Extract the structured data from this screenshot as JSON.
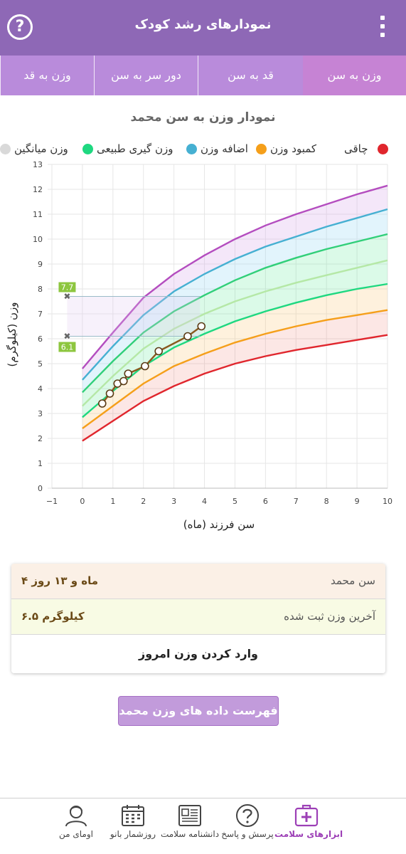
{
  "header": {
    "title": "نمودارهای رشد کودک",
    "help_icon": "question-circle-icon",
    "menu_icon": "more-vertical-icon"
  },
  "tabs": [
    {
      "label": "وزن به سن",
      "active": true
    },
    {
      "label": "قد به سن",
      "active": false
    },
    {
      "label": "دور سر به سن",
      "active": false
    },
    {
      "label": "وزن به قد",
      "active": false
    }
  ],
  "chart_title": "نمودار وزن به سن محمد",
  "legend": [
    {
      "label": "چاقی",
      "color": "#e0262d"
    },
    {
      "label": "کمبود وزن",
      "color": "#f59f1a"
    },
    {
      "label": "اضافه وزن",
      "color": "#46b0d2"
    },
    {
      "label": "وزن گیری طبیعی",
      "color": "#1ed880"
    },
    {
      "label": "وزن میانگین",
      "color": "#d9d9d9"
    }
  ],
  "chart_data": {
    "type": "line",
    "xlabel": "سن فرزند (ماه)",
    "ylabel": "وزن (کیلوگرم)",
    "xlim": [
      -1,
      10
    ],
    "ylim": [
      0,
      13
    ],
    "x_ticks": [
      "−1",
      "0",
      "1",
      "2",
      "3",
      "4",
      "5",
      "6",
      "7",
      "8",
      "9",
      "10"
    ],
    "y_ticks": [
      "0",
      "1",
      "2",
      "3",
      "4",
      "5",
      "6",
      "7",
      "8",
      "9",
      "10",
      "11",
      "12",
      "13"
    ],
    "x": [
      0,
      1,
      2,
      3,
      4,
      5,
      6,
      7,
      8,
      9,
      10
    ],
    "series": [
      {
        "color": "#e0262d",
        "values": [
          1.9,
          2.7,
          3.5,
          4.1,
          4.6,
          5.0,
          5.3,
          5.55,
          5.75,
          5.95,
          6.15
        ]
      },
      {
        "color": "#f59f1a",
        "values": [
          2.4,
          3.3,
          4.2,
          4.9,
          5.4,
          5.85,
          6.2,
          6.5,
          6.75,
          6.95,
          7.15
        ]
      },
      {
        "color": "#b5e8a6",
        "values": [
          3.3,
          4.5,
          5.6,
          6.4,
          7.0,
          7.5,
          7.9,
          8.25,
          8.55,
          8.85,
          9.15
        ]
      },
      {
        "color": "#1ed880",
        "values": [
          2.85,
          3.9,
          4.9,
          5.65,
          6.2,
          6.7,
          7.1,
          7.45,
          7.75,
          8.0,
          8.2
        ]
      },
      {
        "color": "#31cf79",
        "values": [
          3.85,
          5.1,
          6.25,
          7.1,
          7.75,
          8.35,
          8.85,
          9.25,
          9.6,
          9.9,
          10.2
        ]
      },
      {
        "color": "#46b0d2",
        "values": [
          4.35,
          5.7,
          6.95,
          7.9,
          8.6,
          9.2,
          9.7,
          10.1,
          10.5,
          10.85,
          11.2
        ]
      },
      {
        "color": "#b44dbf",
        "values": [
          4.8,
          6.25,
          7.65,
          8.6,
          9.35,
          10.0,
          10.55,
          11.0,
          11.4,
          11.8,
          12.15
        ]
      }
    ],
    "child_points": {
      "color": "#8a5a1f",
      "x": [
        0.65,
        0.9,
        1.15,
        1.35,
        1.5,
        2.05,
        2.5,
        3.45,
        3.9
      ],
      "y": [
        3.4,
        3.8,
        4.2,
        4.3,
        4.6,
        4.9,
        5.5,
        6.1,
        6.5
      ]
    },
    "markers": [
      {
        "label": "7.7",
        "y": 7.7
      },
      {
        "label": "6.1",
        "y": 6.1
      }
    ]
  },
  "info": {
    "age_label": "سن محمد",
    "age_value": "۴ ماه و ۱۳ روز",
    "weight_label": "آخرین وزن ثبت شده",
    "weight_value": "۶.۵ کیلوگرم",
    "enter_weight": "وارد کردن وزن امروز"
  },
  "list_button": "فهرست داده های وزن محمد",
  "bottom_nav": [
    {
      "label": "ابزارهای سلامت",
      "icon": "medical-kit-icon",
      "active": true
    },
    {
      "label": "پرسش و پاسخ",
      "icon": "question-icon",
      "active": false
    },
    {
      "label": "دانشنامه سلامت",
      "icon": "encyclopedia-icon",
      "active": false
    },
    {
      "label": "روزشمار بانو",
      "icon": "calendar-icon",
      "active": false
    },
    {
      "label": "اومای من",
      "icon": "profile-icon",
      "active": false
    }
  ]
}
